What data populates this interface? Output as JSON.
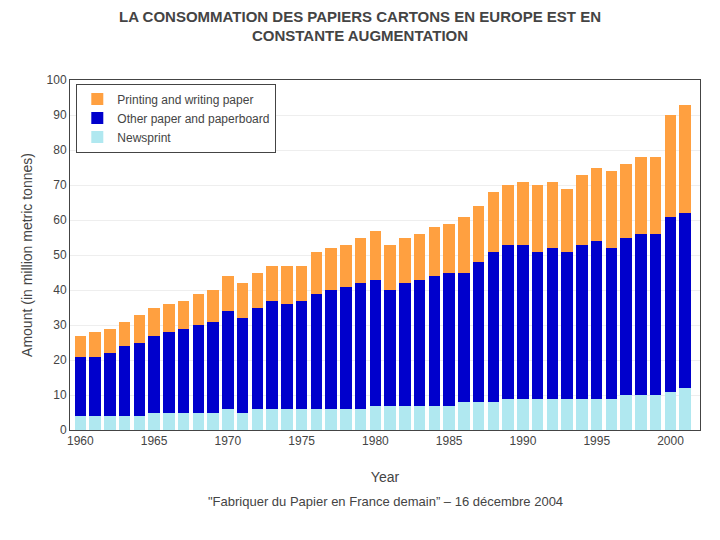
{
  "chart_data": {
    "type": "bar",
    "stacked": true,
    "title": "LA CONSOMMATION DES PAPIERS CARTONS EN EUROPE EST EN\nCONSTANTE AUGMENTATION",
    "x_label": "Year",
    "y_label": "Amount (in million metric tonnes)",
    "annotations": [
      "\"Fabriquer du Papier en France demain” – 16 décembre 2004"
    ],
    "x": [
      1960,
      1961,
      1962,
      1963,
      1964,
      1965,
      1966,
      1967,
      1968,
      1969,
      1970,
      1971,
      1972,
      1973,
      1974,
      1975,
      1976,
      1977,
      1978,
      1979,
      1980,
      1981,
      1982,
      1983,
      1984,
      1985,
      1986,
      1987,
      1988,
      1989,
      1990,
      1991,
      1992,
      1993,
      1994,
      1995,
      1996,
      1997,
      1998,
      1999,
      2000,
      2001
    ],
    "series": [
      {
        "name": "Newsprint",
        "color": "#B0E8F0",
        "values": [
          4,
          4,
          4,
          4,
          4,
          5,
          5,
          5,
          5,
          5,
          6,
          5,
          6,
          6,
          6,
          6,
          6,
          6,
          6,
          6,
          7,
          7,
          7,
          7,
          7,
          7,
          8,
          8,
          8,
          9,
          9,
          9,
          9,
          9,
          9,
          9,
          9,
          10,
          10,
          10,
          11,
          12
        ]
      },
      {
        "name": "Other paper and paperboard",
        "color": "#0000CC",
        "values": [
          17,
          17,
          18,
          20,
          21,
          22,
          23,
          24,
          25,
          26,
          28,
          27,
          29,
          31,
          30,
          31,
          33,
          34,
          35,
          36,
          36,
          33,
          35,
          36,
          37,
          38,
          37,
          40,
          43,
          44,
          44,
          42,
          43,
          42,
          44,
          45,
          43,
          45,
          46,
          46,
          50,
          50
        ]
      },
      {
        "name": "Printing and writing paper",
        "color": "#FFA040",
        "values": [
          6,
          7,
          7,
          7,
          8,
          8,
          8,
          8,
          9,
          9,
          10,
          10,
          10,
          10,
          11,
          10,
          12,
          12,
          12,
          13,
          14,
          13,
          13,
          13,
          14,
          14,
          16,
          16,
          17,
          17,
          18,
          19,
          19,
          18,
          20,
          21,
          22,
          21,
          22,
          22,
          29,
          31
        ]
      }
    ],
    "xlim": [
      1959.3,
      2002
    ],
    "xticks": [
      1960,
      1965,
      1970,
      1975,
      1980,
      1985,
      1990,
      1995,
      2000
    ],
    "ylim": [
      0,
      100
    ],
    "yticks": [
      0,
      10,
      20,
      30,
      40,
      50,
      60,
      70,
      80,
      90,
      100
    ],
    "grid": true,
    "legend": "upper left"
  }
}
